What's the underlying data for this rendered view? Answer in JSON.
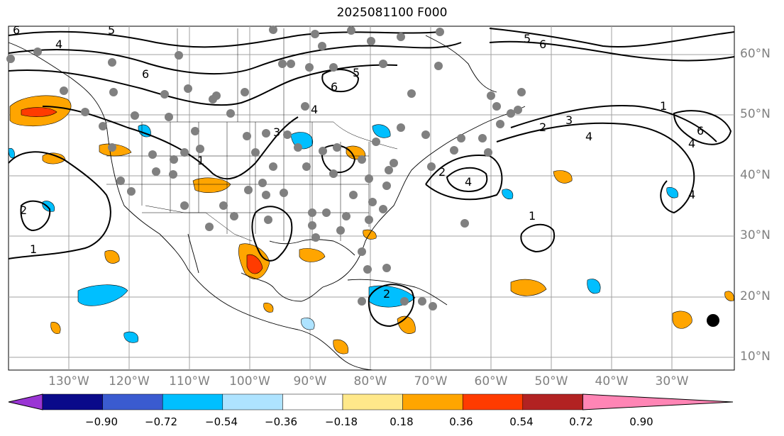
{
  "title": "2025081100 F000",
  "lat_labels": [
    "60°N",
    "50°N",
    "40°N",
    "30°N",
    "20°N",
    "10°N"
  ],
  "lon_labels": [
    "130°W",
    "120°W",
    "110°W",
    "100°W",
    "90°W",
    "80°W",
    "70°W",
    "60°W",
    "50°W",
    "40°W",
    "30°W"
  ],
  "contour_labels": [
    "6",
    "5",
    "4",
    "3",
    "2",
    "1"
  ],
  "colorbar": {
    "tick_labels": [
      "−0.90",
      "−0.72",
      "−0.54",
      "−0.36",
      "−0.18",
      "0.18",
      "0.36",
      "0.54",
      "0.72",
      "0.90"
    ],
    "colors": [
      "#9a35d4",
      "#0a0a8a",
      "#3a5bd0",
      "#00bfff",
      "#aee3ff",
      "#ffffff",
      "#ffe88a",
      "#ffa500",
      "#ff3b00",
      "#b22222",
      "#ff85b5"
    ]
  },
  "shading_colors": {
    "positive": "#ffa500",
    "strong_positive": "#ff3b00",
    "negative": "#00bfff",
    "weak_negative": "#aee3ff"
  },
  "station_color": "#808080"
}
